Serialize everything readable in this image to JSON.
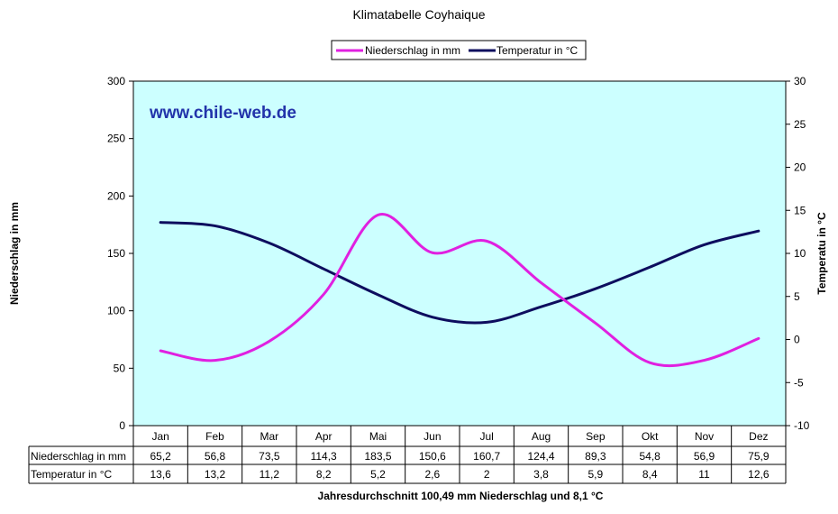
{
  "colors": {
    "plot_bg": "#ccffff",
    "precip": "#e020e0",
    "temp": "#0d0d5e",
    "watermark": "#2233aa",
    "grid": "#000000"
  },
  "watermark": "www.chile-web.de",
  "footer": "Jahresdurchschnitt 100,49 mm Niederschlag und 8,1 °C",
  "chart_data": {
    "type": "line",
    "title": "Klimatabelle Coyhaique",
    "categories": [
      "Jan",
      "Feb",
      "Mar",
      "Apr",
      "Mai",
      "Jun",
      "Jul",
      "Aug",
      "Sep",
      "Okt",
      "Nov",
      "Dez"
    ],
    "series": [
      {
        "name": "Niederschlag in mm",
        "axis": "left",
        "color": "#e020e0",
        "values": [
          65.2,
          56.8,
          73.5,
          114.3,
          183.5,
          150.6,
          160.7,
          124.4,
          89.3,
          54.8,
          56.9,
          75.9
        ],
        "labels": [
          "65,2",
          "56,8",
          "73,5",
          "114,3",
          "183,5",
          "150,6",
          "160,7",
          "124,4",
          "89,3",
          "54,8",
          "56,9",
          "75,9"
        ]
      },
      {
        "name": "Temperatur in °C",
        "axis": "right",
        "color": "#0d0d5e",
        "values": [
          13.6,
          13.2,
          11.2,
          8.2,
          5.2,
          2.6,
          2,
          3.8,
          5.9,
          8.4,
          11,
          12.6
        ],
        "labels": [
          "13,6",
          "13,2",
          "11,2",
          "8,2",
          "5,2",
          "2,6",
          "2",
          "3,8",
          "5,9",
          "8,4",
          "11",
          "12,6"
        ]
      }
    ],
    "ylabel": "Niederschlag in mm",
    "y2label": "Temperatu in °C",
    "ylim": [
      0,
      300
    ],
    "y2lim": [
      -10,
      30
    ],
    "yticks": [
      "0",
      "50",
      "100",
      "150",
      "200",
      "250",
      "300"
    ],
    "y2ticks": [
      "-10",
      "-5",
      "0",
      "5",
      "10",
      "15",
      "20",
      "25",
      "30"
    ],
    "legend_position": "top-center",
    "grid": false,
    "data_table": true
  }
}
